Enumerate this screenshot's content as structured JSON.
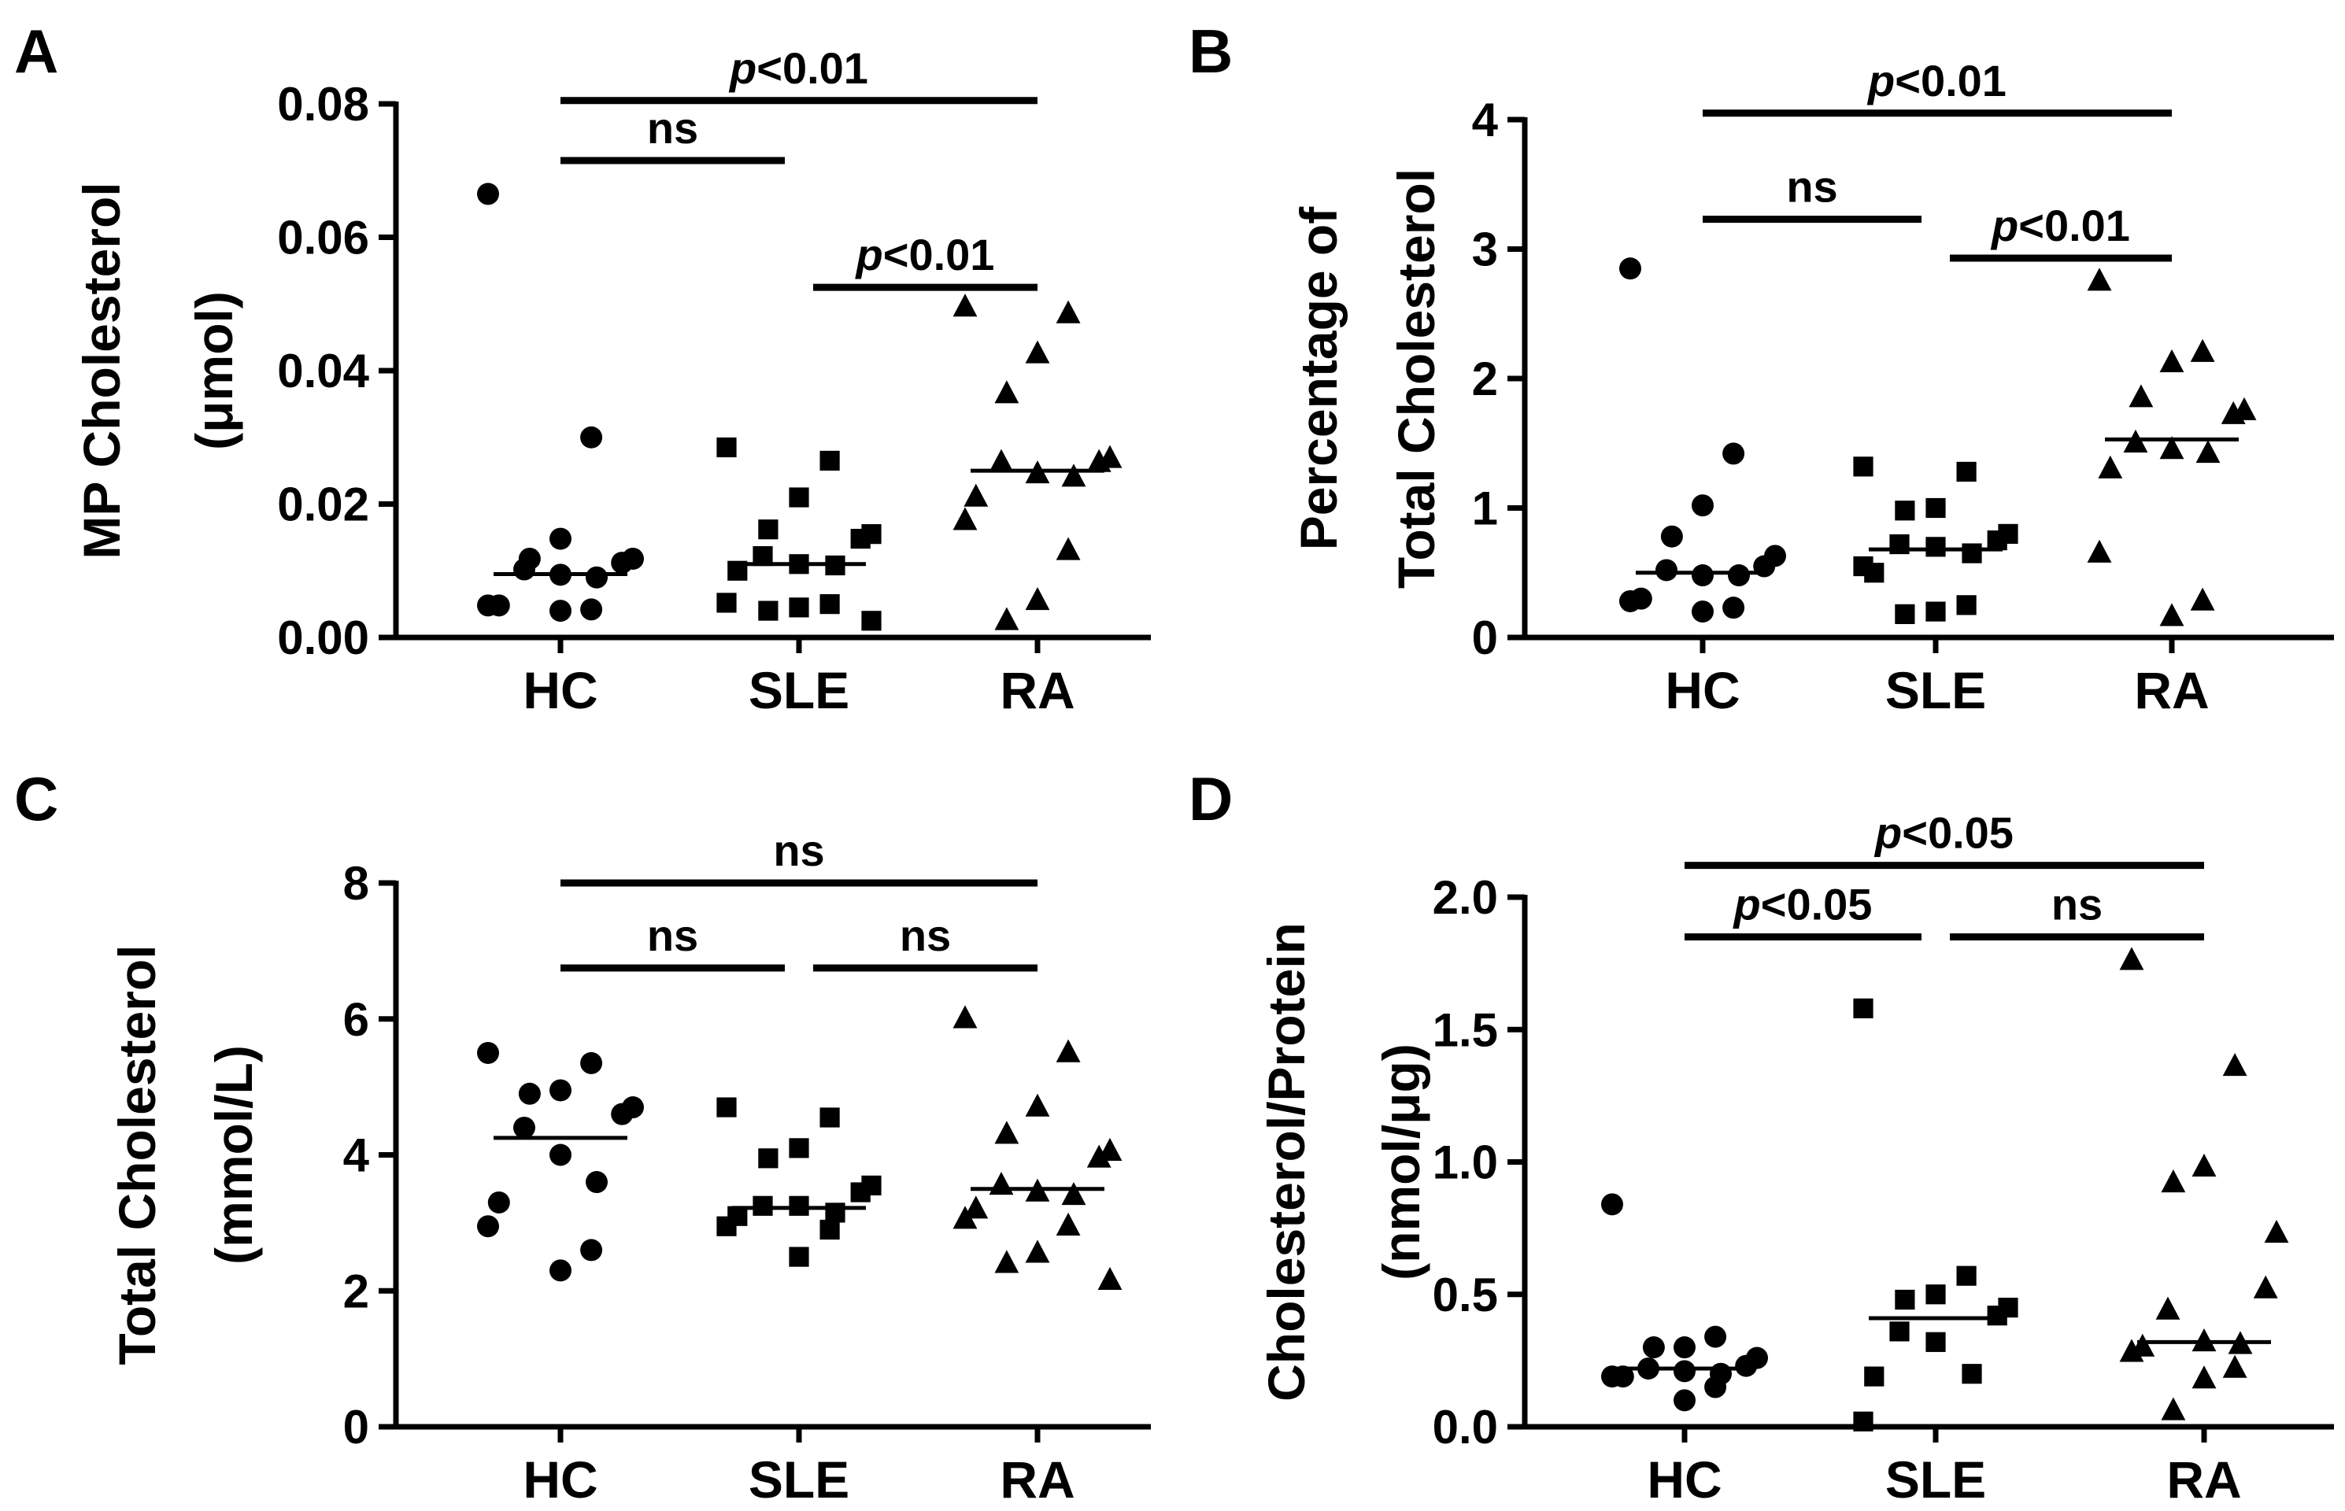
{
  "figure": {
    "panels": [
      {
        "id": "A",
        "chart_data": {
          "type": "scatter",
          "title": "",
          "xlabel": "",
          "ylabel_lines": [
            "MP Cholesterol",
            "(μmol)"
          ],
          "categories": [
            "HC",
            "SLE",
            "RA"
          ],
          "ylim": [
            0,
            0.08
          ],
          "yticks": [
            0,
            0.02,
            0.04,
            0.06,
            0.08
          ],
          "ytick_labels": [
            "0.00",
            "0.02",
            "0.04",
            "0.06",
            "0.08"
          ],
          "series": [
            {
              "name": "HC",
              "marker": "circle",
              "median": 0.0095,
              "values": [
                0.0665,
                0.03,
                0.0148,
                0.0118,
                0.0118,
                0.0112,
                0.0102,
                0.0094,
                0.009,
                0.0048,
                0.0048,
                0.0042,
                0.004
              ]
            },
            {
              "name": "SLE",
              "marker": "square",
              "median": 0.011,
              "values": [
                0.0285,
                0.0265,
                0.021,
                0.0162,
                0.0155,
                0.0148,
                0.0122,
                0.011,
                0.0108,
                0.01,
                0.0052,
                0.005,
                0.0045,
                0.004,
                0.0025
              ]
            },
            {
              "name": "RA",
              "marker": "triangle",
              "median": 0.025,
              "values": [
                0.0495,
                0.0485,
                0.0425,
                0.0365,
                0.0268,
                0.0262,
                0.0262,
                0.0245,
                0.024,
                0.021,
                0.0175,
                0.013,
                0.0055,
                0.0025
              ]
            }
          ],
          "comparisons": [
            {
              "from": "HC",
              "to": "RA",
              "y": 0.0805,
              "label": "p<0.01"
            },
            {
              "from": "HC",
              "to": "SLE",
              "y": 0.0715,
              "label": "ns"
            },
            {
              "from": "SLE",
              "to": "RA",
              "y": 0.0525,
              "label": "p<0.01"
            }
          ]
        }
      },
      {
        "id": "B",
        "chart_data": {
          "type": "scatter",
          "title": "",
          "xlabel": "",
          "ylabel_lines": [
            "Percentage of",
            "Total Cholesterol"
          ],
          "categories": [
            "HC",
            "SLE",
            "RA"
          ],
          "ylim": [
            0,
            4
          ],
          "yticks": [
            0,
            1,
            2,
            3,
            4
          ],
          "ytick_labels": [
            "0",
            "1",
            "2",
            "3",
            "4"
          ],
          "series": [
            {
              "name": "HC",
              "marker": "circle",
              "median": 0.5,
              "values": [
                2.85,
                1.42,
                1.02,
                0.78,
                0.63,
                0.55,
                0.52,
                0.48,
                0.48,
                0.3,
                0.28,
                0.23,
                0.2
              ]
            },
            {
              "name": "SLE",
              "marker": "square",
              "median": 0.68,
              "values": [
                1.32,
                1.28,
                1.0,
                0.98,
                0.8,
                0.75,
                0.72,
                0.7,
                0.65,
                0.5,
                0.55,
                0.25,
                0.2,
                0.18
              ]
            },
            {
              "name": "RA",
              "marker": "triangle",
              "median": 1.53,
              "values": [
                2.75,
                2.2,
                2.12,
                1.85,
                1.75,
                1.72,
                1.5,
                1.45,
                1.42,
                1.3,
                0.65,
                0.28,
                0.16
              ]
            }
          ],
          "comparisons": [
            {
              "from": "HC",
              "to": "RA",
              "y": 4.05,
              "label": "p<0.01"
            },
            {
              "from": "HC",
              "to": "SLE",
              "y": 3.23,
              "label": "ns"
            },
            {
              "from": "SLE",
              "to": "RA",
              "y": 2.93,
              "label": "p<0.01"
            }
          ]
        }
      },
      {
        "id": "C",
        "chart_data": {
          "type": "scatter",
          "title": "",
          "xlabel": "",
          "ylabel_lines": [
            "Total Cholesterol",
            "(mmol/L)"
          ],
          "categories": [
            "HC",
            "SLE",
            "RA"
          ],
          "ylim": [
            0,
            8
          ],
          "yticks": [
            0,
            2,
            4,
            6,
            8
          ],
          "ytick_labels": [
            "0",
            "2",
            "4",
            "6",
            "8"
          ],
          "series": [
            {
              "name": "HC",
              "marker": "circle",
              "median": 4.25,
              "values": [
                5.5,
                5.35,
                4.95,
                4.9,
                4.7,
                4.6,
                4.4,
                4.0,
                3.6,
                3.3,
                2.95,
                2.6,
                2.3
              ]
            },
            {
              "name": "SLE",
              "marker": "square",
              "median": 3.22,
              "values": [
                4.7,
                4.55,
                4.1,
                3.95,
                3.55,
                3.45,
                3.25,
                3.25,
                3.15,
                3.1,
                2.95,
                2.9,
                2.5
              ]
            },
            {
              "name": "RA",
              "marker": "triangle",
              "median": 3.5,
              "values": [
                6.0,
                5.5,
                4.7,
                4.3,
                4.05,
                3.95,
                3.55,
                3.45,
                3.4,
                3.2,
                3.05,
                2.95,
                2.55,
                2.4,
                2.15
              ]
            }
          ],
          "comparisons": [
            {
              "from": "HC",
              "to": "RA",
              "y": 8.0,
              "label": "ns"
            },
            {
              "from": "HC",
              "to": "SLE",
              "y": 6.75,
              "label": "ns"
            },
            {
              "from": "SLE",
              "to": "RA",
              "y": 6.75,
              "label": "ns"
            }
          ]
        }
      },
      {
        "id": "D",
        "chart_data": {
          "type": "scatter",
          "title": "",
          "xlabel": "",
          "ylabel_lines": [
            "Cholesterol/Protein",
            "(nmol/μg)"
          ],
          "categories": [
            "HC",
            "SLE",
            "RA"
          ],
          "ylim": [
            0,
            2.0
          ],
          "yticks": [
            0,
            0.5,
            1.0,
            1.5,
            2.0
          ],
          "ytick_labels": [
            "0.0",
            "0.5",
            "1.0",
            "1.5",
            "2.0"
          ],
          "series": [
            {
              "name": "HC",
              "marker": "circle",
              "median": 0.22,
              "values": [
                0.84,
                0.34,
                0.3,
                0.3,
                0.26,
                0.23,
                0.22,
                0.21,
                0.2,
                0.19,
                0.19,
                0.15,
                0.1
              ]
            },
            {
              "name": "SLE",
              "marker": "square",
              "median": 0.41,
              "values": [
                1.58,
                0.57,
                0.5,
                0.48,
                0.45,
                0.42,
                0.36,
                0.32,
                0.2,
                0.19,
                0.02
              ]
            },
            {
              "name": "RA",
              "marker": "triangle",
              "median": 0.32,
              "values": [
                1.76,
                1.36,
                0.98,
                0.92,
                0.73,
                0.52,
                0.44,
                0.32,
                0.31,
                0.3,
                0.28,
                0.22,
                0.18,
                0.06
              ]
            }
          ],
          "comparisons": [
            {
              "from": "HC",
              "to": "RA",
              "y": 2.12,
              "label": "p<0.05"
            },
            {
              "from": "HC",
              "to": "SLE",
              "y": 1.85,
              "label": "p<0.05"
            },
            {
              "from": "SLE",
              "to": "RA",
              "y": 1.85,
              "label": "ns"
            }
          ]
        }
      }
    ]
  }
}
